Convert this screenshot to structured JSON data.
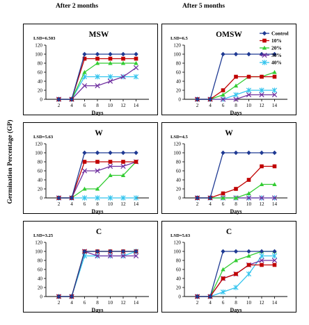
{
  "headers": {
    "left": "After 2 months",
    "right": "After 5 months"
  },
  "ylabel": "Germination Percentage (GP)",
  "colors": {
    "Control": "#1f3a93",
    "10%": "#c00000",
    "20%": "#33cc33",
    "30%": "#7030a0",
    "40%": "#33c4ee"
  },
  "markers": {
    "Control": "diamond",
    "10%": "square",
    "20%": "triangle",
    "30%": "x",
    "40%": "star"
  },
  "chart_data": [
    {
      "type": "line",
      "title": "MSW",
      "lsd": "LSD=6.503",
      "xlabel": "Days",
      "x": [
        2,
        4,
        6,
        8,
        10,
        12,
        14
      ],
      "ylim": [
        0,
        120
      ],
      "yticks": [
        0,
        20,
        40,
        60,
        80,
        100,
        120
      ],
      "series": [
        {
          "name": "Control",
          "values": [
            0,
            0,
            100,
            100,
            100,
            100,
            100
          ]
        },
        {
          "name": "10%",
          "values": [
            0,
            0,
            90,
            90,
            90,
            90,
            90
          ]
        },
        {
          "name": "20%",
          "values": [
            0,
            0,
            60,
            80,
            80,
            80,
            80
          ]
        },
        {
          "name": "30%",
          "values": [
            0,
            0,
            30,
            30,
            40,
            50,
            70
          ]
        },
        {
          "name": "40%",
          "values": [
            0,
            0,
            50,
            50,
            50,
            50,
            50
          ]
        }
      ]
    },
    {
      "type": "line",
      "title": "OMSW",
      "lsd": "LSD=6.5",
      "xlabel": "Days",
      "x": [
        2,
        4,
        6,
        8,
        10,
        12,
        14
      ],
      "ylim": [
        0,
        120
      ],
      "yticks": [
        0,
        20,
        40,
        60,
        80,
        100,
        120
      ],
      "legend": "top-right",
      "series": [
        {
          "name": "Control",
          "values": [
            0,
            0,
            100,
            100,
            100,
            100,
            100
          ]
        },
        {
          "name": "10%",
          "values": [
            0,
            0,
            20,
            50,
            50,
            50,
            50
          ]
        },
        {
          "name": "20%",
          "values": [
            0,
            0,
            10,
            30,
            50,
            50,
            60
          ]
        },
        {
          "name": "30%",
          "values": [
            0,
            0,
            0,
            0,
            10,
            10,
            10
          ]
        },
        {
          "name": "40%",
          "values": [
            0,
            0,
            0,
            10,
            20,
            20,
            20
          ]
        }
      ]
    },
    {
      "type": "line",
      "title": "W",
      "lsd": "LSD=5.63",
      "xlabel": "Days",
      "x": [
        2,
        4,
        6,
        8,
        10,
        12,
        14
      ],
      "ylim": [
        0,
        120
      ],
      "yticks": [
        0,
        20,
        40,
        60,
        80,
        100,
        120
      ],
      "series": [
        {
          "name": "Control",
          "values": [
            0,
            0,
            100,
            100,
            100,
            100,
            100
          ]
        },
        {
          "name": "10%",
          "values": [
            0,
            0,
            80,
            80,
            80,
            80,
            80
          ]
        },
        {
          "name": "20%",
          "values": [
            0,
            0,
            20,
            20,
            50,
            50,
            80
          ]
        },
        {
          "name": "30%",
          "values": [
            0,
            0,
            60,
            60,
            70,
            70,
            80
          ]
        },
        {
          "name": "40%",
          "values": [
            0,
            0,
            0,
            0,
            0,
            0,
            0
          ]
        }
      ]
    },
    {
      "type": "line",
      "title": "W",
      "lsd": "LSD=4.5",
      "xlabel": "Days",
      "x": [
        2,
        4,
        6,
        8,
        10,
        12,
        14
      ],
      "ylim": [
        0,
        120
      ],
      "yticks": [
        0,
        20,
        40,
        60,
        80,
        100,
        120
      ],
      "series": [
        {
          "name": "Control",
          "values": [
            0,
            0,
            100,
            100,
            100,
            100,
            100
          ]
        },
        {
          "name": "10%",
          "values": [
            0,
            0,
            10,
            20,
            40,
            70,
            70
          ]
        },
        {
          "name": "20%",
          "values": [
            0,
            0,
            0,
            0,
            10,
            30,
            30
          ]
        },
        {
          "name": "30%",
          "values": [
            0,
            0,
            0,
            0,
            0,
            0,
            0
          ]
        },
        {
          "name": "40%",
          "values": [
            0,
            0,
            0,
            0,
            0,
            0,
            0
          ]
        }
      ]
    },
    {
      "type": "line",
      "title": "C",
      "lsd": "LSD=3.25",
      "xlabel": "Days",
      "x": [
        2,
        4,
        6,
        8,
        10,
        12,
        14
      ],
      "ylim": [
        0,
        120
      ],
      "yticks": [
        0,
        20,
        40,
        60,
        80,
        100,
        120
      ],
      "series": [
        {
          "name": "Control",
          "values": [
            0,
            0,
            100,
            100,
            100,
            100,
            100
          ]
        },
        {
          "name": "10%",
          "values": [
            0,
            0,
            100,
            100,
            100,
            100,
            100
          ]
        },
        {
          "name": "20%",
          "values": [
            0,
            0,
            100,
            100,
            100,
            100,
            100
          ]
        },
        {
          "name": "30%",
          "values": [
            0,
            0,
            100,
            90,
            90,
            90,
            90
          ]
        },
        {
          "name": "40%",
          "values": [
            0,
            0,
            90,
            90,
            90,
            90,
            100
          ]
        }
      ]
    },
    {
      "type": "line",
      "title": "C",
      "lsd": "LSD=5.63",
      "xlabel": "Days",
      "x": [
        2,
        4,
        6,
        8,
        10,
        12,
        14
      ],
      "ylim": [
        0,
        120
      ],
      "yticks": [
        0,
        20,
        40,
        60,
        80,
        100,
        120
      ],
      "series": [
        {
          "name": "Control",
          "values": [
            0,
            0,
            100,
            100,
            100,
            100,
            100
          ]
        },
        {
          "name": "10%",
          "values": [
            0,
            0,
            40,
            50,
            70,
            70,
            70
          ]
        },
        {
          "name": "20%",
          "values": [
            0,
            0,
            60,
            80,
            90,
            100,
            100
          ]
        },
        {
          "name": "30%",
          "values": [
            0,
            0,
            40,
            50,
            70,
            80,
            80
          ]
        },
        {
          "name": "40%",
          "values": [
            0,
            0,
            10,
            20,
            50,
            90,
            90
          ]
        }
      ]
    }
  ]
}
